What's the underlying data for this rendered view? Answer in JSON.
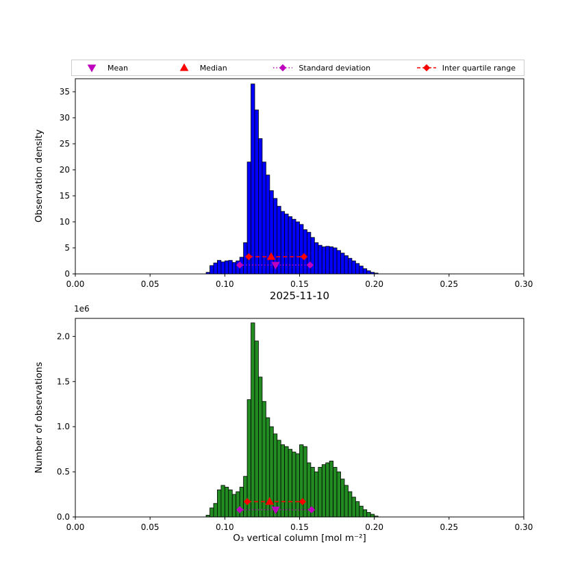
{
  "figure": {
    "title": "2025-11-10",
    "xlabel": "O₃ vertical column [mol m⁻²]",
    "y_offset_label": "1e6"
  },
  "legend": {
    "items": [
      {
        "label": "Mean",
        "marker": "triangle-down",
        "line": "none",
        "color": "#bf00bf"
      },
      {
        "label": "Median",
        "marker": "triangle-up",
        "line": "none",
        "color": "#ff0000"
      },
      {
        "label": "Standard deviation",
        "marker": "diamond",
        "line": "dotted",
        "color": "#bf00bf"
      },
      {
        "label": "Inter quartile range",
        "marker": "diamond",
        "line": "dashed",
        "color": "#ff0000"
      }
    ]
  },
  "chart_data": [
    {
      "type": "bar",
      "name": "observation-density-histogram",
      "ylabel": "Observation density",
      "bar_color": "#0000ff",
      "edge_color": "#000000",
      "xlim": [
        0.0,
        0.3
      ],
      "ylim": [
        0.0,
        37.5
      ],
      "xticks": [
        0.0,
        0.05,
        0.1,
        0.15,
        0.2,
        0.25,
        0.3
      ],
      "xtick_labels": [
        "0.00",
        "0.05",
        "0.10",
        "0.15",
        "0.20",
        "0.25",
        "0.30"
      ],
      "yticks": [
        0,
        5,
        10,
        15,
        20,
        25,
        30,
        35
      ],
      "ytick_labels": [
        "0",
        "5",
        "10",
        "15",
        "20",
        "25",
        "30",
        "35"
      ],
      "bin_width": 0.0025,
      "bin_left": [
        0.0875,
        0.09,
        0.0925,
        0.095,
        0.0975,
        0.1,
        0.1025,
        0.105,
        0.1075,
        0.11,
        0.1125,
        0.115,
        0.1175,
        0.12,
        0.1225,
        0.125,
        0.1275,
        0.13,
        0.1325,
        0.135,
        0.1375,
        0.14,
        0.1425,
        0.145,
        0.1475,
        0.15,
        0.1525,
        0.155,
        0.1575,
        0.16,
        0.1625,
        0.165,
        0.1675,
        0.17,
        0.1725,
        0.175,
        0.1775,
        0.18,
        0.1825,
        0.185,
        0.1875,
        0.19,
        0.1925,
        0.195,
        0.1975,
        0.2
      ],
      "values": [
        0.3,
        1.6,
        2.1,
        2.6,
        2.3,
        2.5,
        2.6,
        2.2,
        2.5,
        3.2,
        6.0,
        21.5,
        36.5,
        31.5,
        26.0,
        21.5,
        19.0,
        16.0,
        14.5,
        13.0,
        12.0,
        11.5,
        11.0,
        10.5,
        10.0,
        9.5,
        8.5,
        8.0,
        7.0,
        6.0,
        5.5,
        5.2,
        5.3,
        5.2,
        5.0,
        4.5,
        4.0,
        3.5,
        3.0,
        2.5,
        2.0,
        1.5,
        1.0,
        0.6,
        0.3,
        0.15
      ],
      "markers": {
        "mean": {
          "x": 0.134,
          "y": 1.7,
          "color": "#bf00bf"
        },
        "median": {
          "x": 0.131,
          "y": 3.3,
          "color": "#ff0000"
        },
        "std": {
          "x1": 0.11,
          "x2": 0.157,
          "y": 1.7,
          "color": "#bf00bf",
          "style": "dotted"
        },
        "iqr": {
          "x1": 0.116,
          "x2": 0.153,
          "y": 3.3,
          "color": "#ff0000",
          "style": "dashed"
        }
      }
    },
    {
      "type": "bar",
      "name": "observation-count-histogram",
      "ylabel": "Number of observations",
      "y_scale": "1e6",
      "bar_color": "#228b22",
      "edge_color": "#000000",
      "xlim": [
        0.0,
        0.3
      ],
      "ylim": [
        0.0,
        2.2
      ],
      "xticks": [
        0.0,
        0.05,
        0.1,
        0.15,
        0.2,
        0.25,
        0.3
      ],
      "xtick_labels": [
        "0.00",
        "0.05",
        "0.10",
        "0.15",
        "0.20",
        "0.25",
        "0.30"
      ],
      "yticks": [
        0.0,
        0.5,
        1.0,
        1.5,
        2.0
      ],
      "ytick_labels": [
        "0.0",
        "0.5",
        "1.0",
        "1.5",
        "2.0"
      ],
      "bin_width": 0.0025,
      "bin_left": [
        0.0875,
        0.09,
        0.0925,
        0.095,
        0.0975,
        0.1,
        0.1025,
        0.105,
        0.1075,
        0.11,
        0.1125,
        0.115,
        0.1175,
        0.12,
        0.1225,
        0.125,
        0.1275,
        0.13,
        0.1325,
        0.135,
        0.1375,
        0.14,
        0.1425,
        0.145,
        0.1475,
        0.15,
        0.1525,
        0.155,
        0.1575,
        0.16,
        0.1625,
        0.165,
        0.1675,
        0.17,
        0.1725,
        0.175,
        0.1775,
        0.18,
        0.1825,
        0.185,
        0.1875,
        0.19,
        0.1925,
        0.195,
        0.1975,
        0.2
      ],
      "values": [
        0.02,
        0.1,
        0.15,
        0.3,
        0.35,
        0.33,
        0.3,
        0.25,
        0.28,
        0.33,
        0.45,
        1.3,
        2.15,
        1.95,
        1.55,
        1.28,
        1.1,
        1.0,
        0.92,
        0.85,
        0.8,
        0.78,
        0.75,
        0.72,
        0.7,
        0.8,
        0.78,
        0.6,
        0.55,
        0.5,
        0.55,
        0.58,
        0.6,
        0.62,
        0.55,
        0.5,
        0.42,
        0.35,
        0.28,
        0.22,
        0.17,
        0.12,
        0.08,
        0.05,
        0.03,
        0.01
      ],
      "markers": {
        "mean": {
          "x": 0.134,
          "y": 0.08,
          "color": "#bf00bf"
        },
        "median": {
          "x": 0.13,
          "y": 0.17,
          "color": "#ff0000"
        },
        "std": {
          "x1": 0.11,
          "x2": 0.158,
          "y": 0.08,
          "color": "#bf00bf",
          "style": "dotted"
        },
        "iqr": {
          "x1": 0.115,
          "x2": 0.152,
          "y": 0.17,
          "color": "#ff0000",
          "style": "dashed"
        }
      }
    }
  ]
}
